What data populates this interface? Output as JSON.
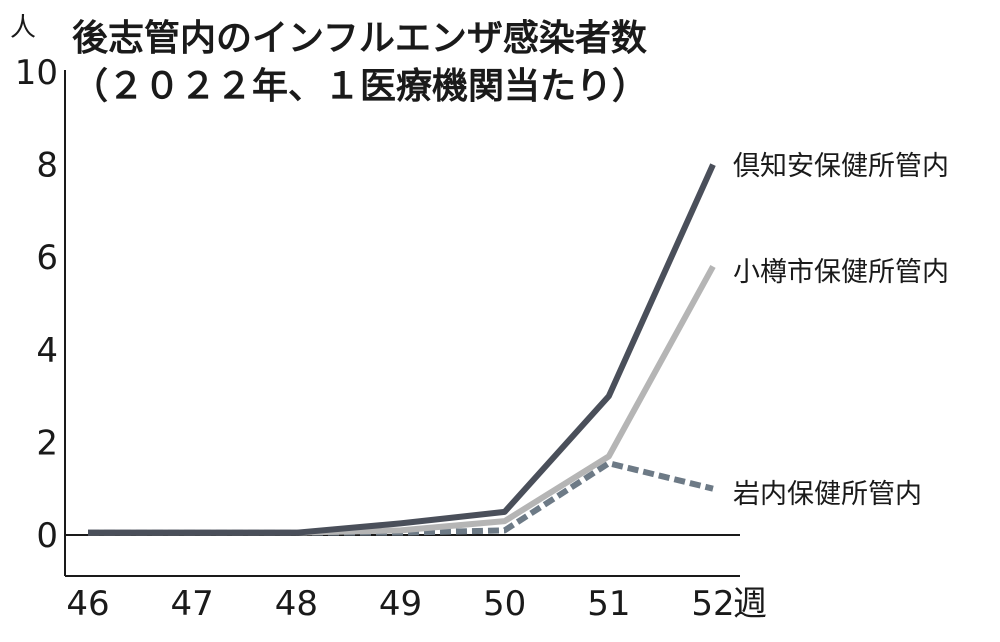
{
  "chart_data": {
    "type": "line",
    "title": "後志管内のインフルエンザ感染者数",
    "subtitle": "（２０２２年、１医療機関当たり）",
    "y_unit": "人",
    "x_unit": "週",
    "x": [
      46,
      47,
      48,
      49,
      50,
      51,
      52
    ],
    "ylim": [
      0,
      10
    ],
    "yticks": [
      0,
      2,
      4,
      6,
      8,
      10
    ],
    "grid": false,
    "legend": "labels at line ends (right)",
    "series": [
      {
        "name": "倶知安保健所管内",
        "values": [
          0.05,
          0.05,
          0.05,
          0.25,
          0.5,
          3.0,
          8.0
        ],
        "color": "#4a4f5a",
        "style": "solid"
      },
      {
        "name": "小樽市保健所管内",
        "values": [
          0.05,
          0.05,
          0.05,
          0.1,
          0.3,
          1.7,
          5.8
        ],
        "color": "#b5b5b5",
        "style": "solid"
      },
      {
        "name": "岩内保健所管内",
        "values": [
          0.05,
          0.05,
          0.05,
          0.05,
          0.1,
          1.55,
          1.0
        ],
        "color": "#6d7a86",
        "style": "dashed"
      }
    ]
  }
}
